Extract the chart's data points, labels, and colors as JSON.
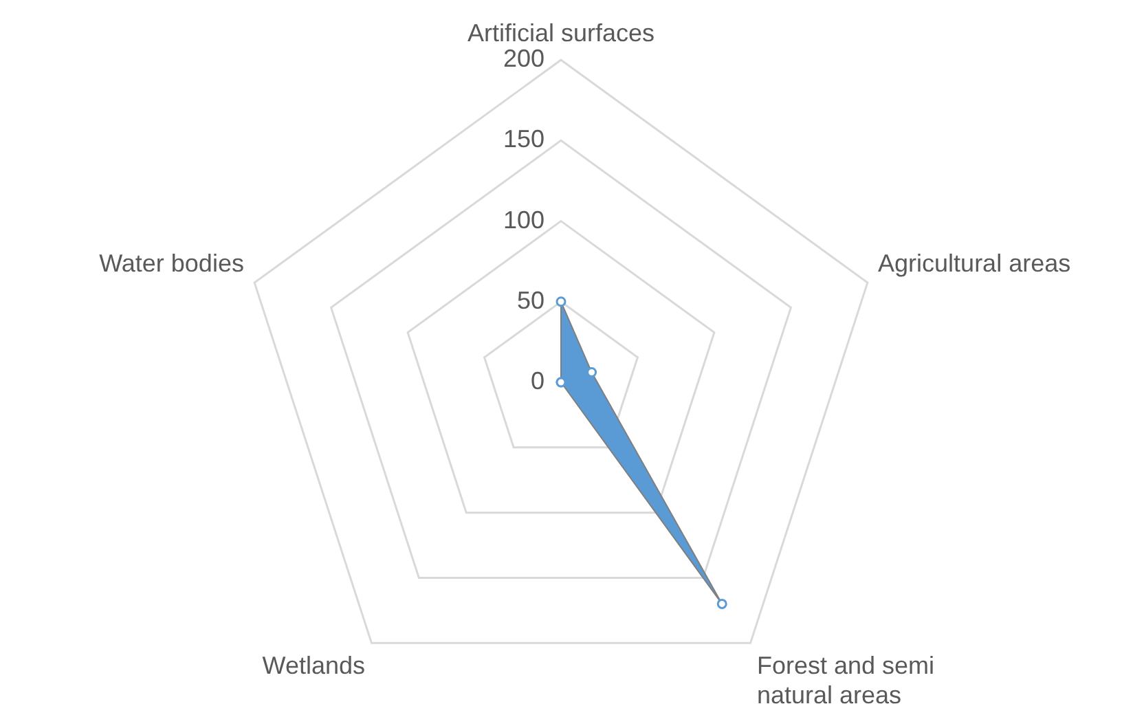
{
  "chart_data": {
    "type": "radar",
    "categories": [
      "Artificial surfaces",
      "Agricultural areas",
      "Forest and semi natural areas",
      "Wetlands",
      "Water bodies"
    ],
    "series": [
      {
        "color": "#5b9bd5",
        "values": [
          50,
          20,
          170,
          0,
          0
        ]
      }
    ],
    "ylim": [
      0,
      200
    ],
    "yticks": [
      0,
      50,
      100,
      150,
      200
    ],
    "grid": true,
    "legend": false,
    "marker": "circle"
  }
}
